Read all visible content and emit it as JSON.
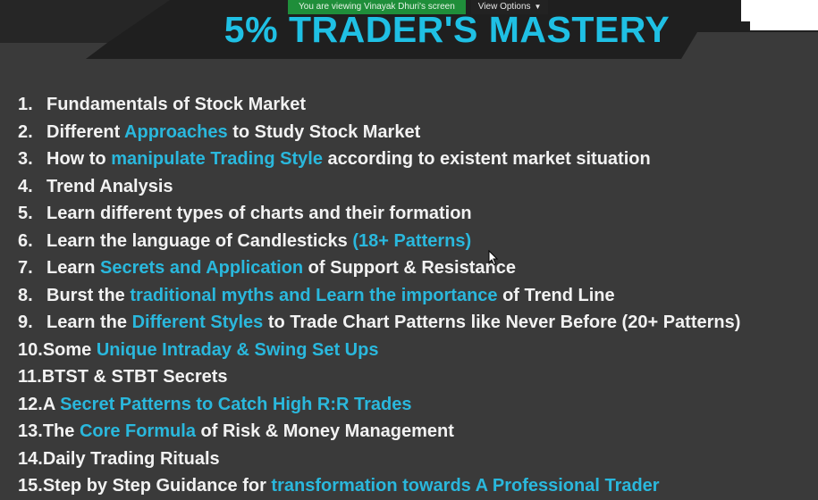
{
  "share_banner": {
    "viewing_text": "You are viewing Vinayak Dhuri's screen",
    "options_label": "View Options"
  },
  "title": "5% TRADER'S MASTERY",
  "items": [
    {
      "num": "1.",
      "parts": [
        "Fundamentals of Stock Market"
      ]
    },
    {
      "num": "2.",
      "parts": [
        "Different ",
        "Approaches",
        " to Study Stock Market"
      ]
    },
    {
      "num": "3.",
      "parts": [
        "How to ",
        "manipulate Trading Style",
        " according to existent market situation"
      ]
    },
    {
      "num": "4.",
      "parts": [
        "Trend Analysis"
      ]
    },
    {
      "num": "5.",
      "parts": [
        "Learn different types of charts and their formation"
      ]
    },
    {
      "num": "6.",
      "parts": [
        "Learn the language of Candlesticks ",
        "(18+ Patterns)",
        ""
      ]
    },
    {
      "num": "7.",
      "parts": [
        "Learn ",
        "Secrets and Application",
        " of Support & Resistance"
      ]
    },
    {
      "num": "8.",
      "parts": [
        "Burst the ",
        "traditional myths and Learn the importance",
        " of Trend Line"
      ]
    },
    {
      "num": "9.",
      "parts": [
        "Learn the ",
        "Different Styles",
        " to Trade Chart Patterns like Never Before (20+ Patterns)"
      ]
    },
    {
      "num": "10.",
      "parts": [
        "Some ",
        "Unique Intraday & Swing Set Ups",
        ""
      ]
    },
    {
      "num": "11.",
      "parts": [
        "BTST & STBT Secrets"
      ]
    },
    {
      "num": "12.",
      "parts": [
        "A ",
        "Secret Patterns to Catch High R:R Trades",
        ""
      ]
    },
    {
      "num": "13.",
      "parts": [
        "The ",
        "Core Formula",
        " of Risk & Money Management"
      ]
    },
    {
      "num": "14.",
      "parts": [
        "Daily Trading Rituals"
      ]
    },
    {
      "num": "15.",
      "parts": [
        "Step by Step Guidance for ",
        "transformation towards A Professional Trader",
        ""
      ]
    }
  ],
  "colors": {
    "highlight": "#2ab8dd",
    "title": "#1fc0e4",
    "banner": "#1f8e3a"
  }
}
